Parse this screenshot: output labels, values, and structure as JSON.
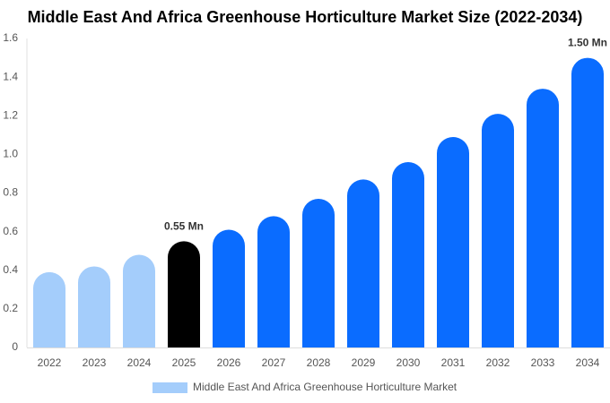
{
  "chart_data": {
    "type": "bar",
    "title": "Middle East And Africa Greenhouse Horticulture Market Size (2022-2034)",
    "categories": [
      "2022",
      "2023",
      "2024",
      "2025",
      "2026",
      "2027",
      "2028",
      "2029",
      "2030",
      "2031",
      "2032",
      "2033",
      "2034"
    ],
    "series": [
      {
        "name": "Middle East And Africa Greenhouse Horticulture Market",
        "color": "#a4cdfb",
        "values": [
          0.39,
          0.42,
          0.48,
          0.55,
          0.61,
          0.68,
          0.77,
          0.87,
          0.96,
          1.09,
          1.21,
          1.34,
          1.5
        ],
        "value_labels": [
          null,
          null,
          null,
          "0.55 Mn",
          null,
          null,
          null,
          null,
          null,
          null,
          null,
          null,
          "1.50 Mn"
        ],
        "bar_colors": [
          "#a4cdfb",
          "#a4cdfb",
          "#a4cdfb",
          "#000000",
          "#0a6cff",
          "#0a6cff",
          "#0a6cff",
          "#0a6cff",
          "#0a6cff",
          "#0a6cff",
          "#0a6cff",
          "#0a6cff",
          "#0a6cff"
        ]
      }
    ],
    "ylim": [
      0,
      1.6
    ],
    "yticks": [
      0,
      0.2,
      0.4,
      0.6,
      0.8,
      {
        "value": 1,
        "label": "1.0"
      },
      1.2,
      1.4,
      1.6
    ],
    "grid": false
  }
}
